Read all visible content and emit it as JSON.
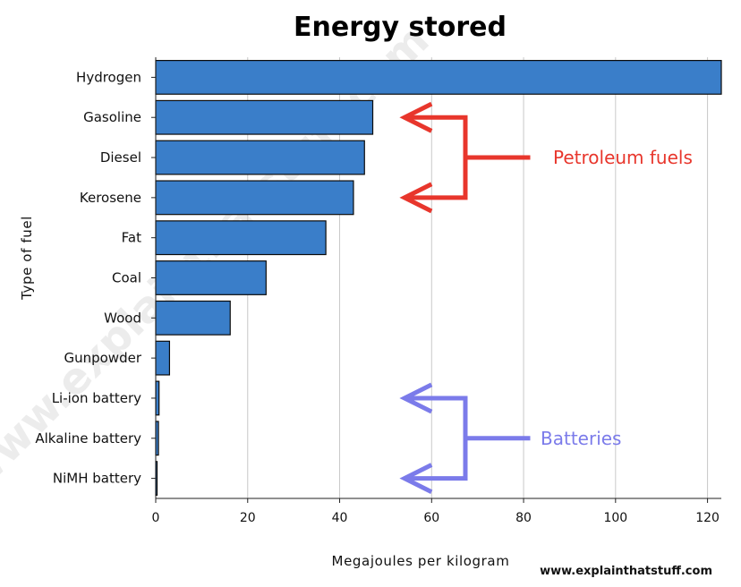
{
  "chart_data": {
    "type": "bar",
    "orientation": "horizontal",
    "title": "Energy stored",
    "xlabel": "Megajoules per kilogram",
    "ylabel": "Type of fuel",
    "categories": [
      "Hydrogen",
      "Gasoline",
      "Diesel",
      "Kerosene",
      "Fat",
      "Coal",
      "Wood",
      "Gunpowder",
      "Li-ion battery",
      "Alkaline battery",
      "NiMH battery"
    ],
    "values": [
      123,
      47.2,
      45.4,
      43,
      37,
      24,
      16.2,
      3,
      0.72,
      0.59,
      0.29
    ],
    "xlim": [
      0,
      123
    ],
    "xticks": [
      0,
      20,
      40,
      60,
      80,
      100,
      120
    ],
    "grid": "vertical",
    "bar_color": "#3a7ec9",
    "annotations": [
      {
        "text": "Petroleum fuels",
        "color": "#e8362c",
        "targets": [
          "Gasoline",
          "Kerosene"
        ]
      },
      {
        "text": "Batteries",
        "color": "#7b7bea",
        "targets": [
          "Li-ion battery",
          "NiMH battery"
        ]
      }
    ],
    "credit": "www.explainthatstuff.com",
    "watermark": "www.explainthatstuff.com"
  }
}
